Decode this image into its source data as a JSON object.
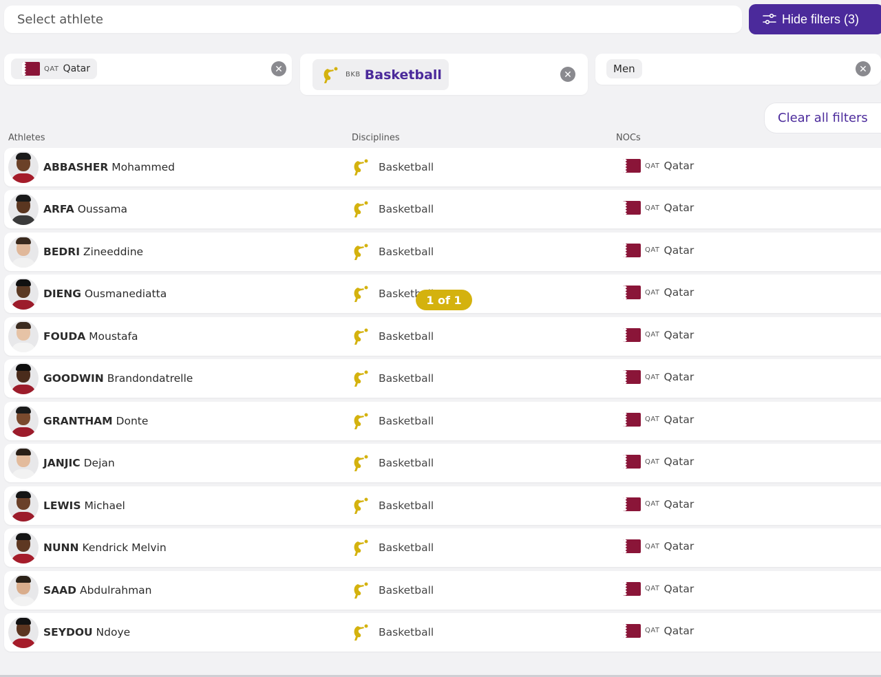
{
  "search": {
    "placeholder": "Select athlete"
  },
  "toolbar": {
    "hide_filters_label": "Hide filters (3)",
    "clear_all_label": "Clear all filters"
  },
  "filters": {
    "noc": {
      "code": "QAT",
      "name": "Qatar"
    },
    "discipline": {
      "code": "BKB",
      "name": "Basketball"
    },
    "gender": {
      "name": "Men"
    }
  },
  "columns": {
    "athletes": "Athletes",
    "disciplines": "Disciplines",
    "nocs": "NOCs"
  },
  "colors": {
    "accent": "#4b2a9b",
    "gold": "#d4b20e",
    "qatar": "#8a1538"
  },
  "pager": "1 of 1",
  "athletes": [
    {
      "last": "ABBASHER",
      "first": "Mohammed",
      "discipline": "Basketball",
      "noc_code": "QAT",
      "noc": "Qatar"
    },
    {
      "last": "ARFA",
      "first": "Oussama",
      "discipline": "Basketball",
      "noc_code": "QAT",
      "noc": "Qatar"
    },
    {
      "last": "BEDRI",
      "first": "Zineeddine",
      "discipline": "Basketball",
      "noc_code": "QAT",
      "noc": "Qatar"
    },
    {
      "last": "DIENG",
      "first": "Ousmanediatta",
      "discipline": "Basketball",
      "noc_code": "QAT",
      "noc": "Qatar"
    },
    {
      "last": "FOUDA",
      "first": "Moustafa",
      "discipline": "Basketball",
      "noc_code": "QAT",
      "noc": "Qatar"
    },
    {
      "last": "GOODWIN",
      "first": "Brandondatrelle",
      "discipline": "Basketball",
      "noc_code": "QAT",
      "noc": "Qatar"
    },
    {
      "last": "GRANTHAM",
      "first": "Donte",
      "discipline": "Basketball",
      "noc_code": "QAT",
      "noc": "Qatar"
    },
    {
      "last": "JANJIC",
      "first": "Dejan",
      "discipline": "Basketball",
      "noc_code": "QAT",
      "noc": "Qatar"
    },
    {
      "last": "LEWIS",
      "first": "Michael",
      "discipline": "Basketball",
      "noc_code": "QAT",
      "noc": "Qatar"
    },
    {
      "last": "NUNN",
      "first": "Kendrick Melvin",
      "discipline": "Basketball",
      "noc_code": "QAT",
      "noc": "Qatar"
    },
    {
      "last": "SAAD",
      "first": "Abdulrahman",
      "discipline": "Basketball",
      "noc_code": "QAT",
      "noc": "Qatar"
    },
    {
      "last": "SEYDOU",
      "first": "Ndoye",
      "discipline": "Basketball",
      "noc_code": "QAT",
      "noc": "Qatar"
    }
  ]
}
